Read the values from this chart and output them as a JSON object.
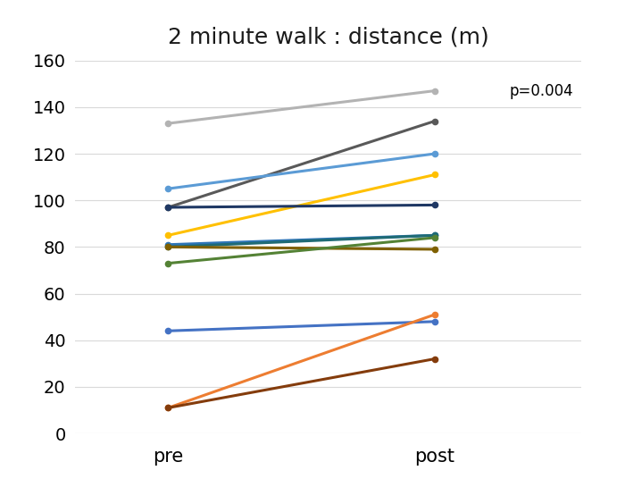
{
  "title": "2 minute walk : distance (m)",
  "patients": [
    {
      "pre": 133,
      "post": 147,
      "color": "#b3b3b3"
    },
    {
      "pre": 97,
      "post": 134,
      "color": "#595959"
    },
    {
      "pre": 105,
      "post": 120,
      "color": "#5b9bd5"
    },
    {
      "pre": 85,
      "post": 111,
      "color": "#ffc000"
    },
    {
      "pre": 97,
      "post": 98,
      "color": "#1f3864"
    },
    {
      "pre": 81,
      "post": 85,
      "color": "#2e75b6"
    },
    {
      "pre": 80,
      "post": 85,
      "color": "#1f6b75"
    },
    {
      "pre": 80,
      "post": 79,
      "color": "#7f6000"
    },
    {
      "pre": 73,
      "post": 84,
      "color": "#548235"
    },
    {
      "pre": 44,
      "post": 48,
      "color": "#4472c4"
    },
    {
      "pre": 11,
      "post": 51,
      "color": "#ed7d31"
    },
    {
      "pre": 11,
      "post": 32,
      "color": "#843c0c"
    }
  ],
  "xlabels": [
    "pre",
    "post"
  ],
  "ylim": [
    0,
    160
  ],
  "yticks": [
    0,
    20,
    40,
    60,
    80,
    100,
    120,
    140,
    160
  ],
  "pvalue_text": "p=0.004",
  "grid_color": "#d9d9d9",
  "background_color": "#ffffff",
  "title_fontsize": 18,
  "tick_fontsize": 14,
  "xlabel_fontsize": 15
}
